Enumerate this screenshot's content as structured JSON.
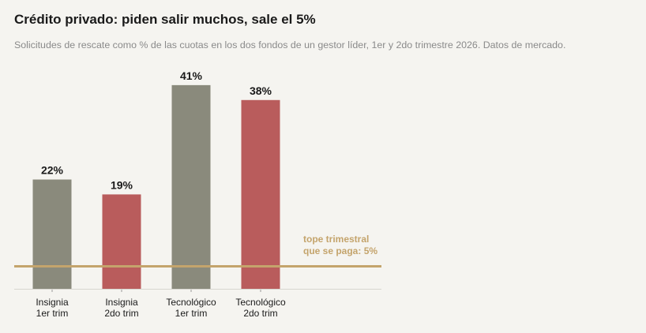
{
  "header": {
    "title": "Crédito privado: piden salir muchos, sale el 5%",
    "subtitle": "Solicitudes de rescate como % de las cuotas en los dos fondos de un gestor líder, 1er y 2do trimestre 2026. Datos de mercado."
  },
  "chart_data": {
    "type": "bar",
    "categories": [
      [
        "Insignia",
        "1er trim"
      ],
      [
        "Insignia",
        "2do trim"
      ],
      [
        "Tecnológico",
        "1er trim"
      ],
      [
        "Tecnológico",
        "2do trim"
      ]
    ],
    "values": [
      22,
      19,
      41,
      38
    ],
    "data_labels": [
      "22%",
      "19%",
      "41%",
      "38%"
    ],
    "bar_colors": [
      "#8a8a7c",
      "#b95c5c",
      "#8a8a7c",
      "#b95c5c"
    ],
    "ylim": [
      0,
      44
    ],
    "reference_line": {
      "value": 5,
      "label": [
        "tope trimestral",
        "que se paga: 5%"
      ],
      "color": "#c4a46c"
    },
    "xlabel": "",
    "ylabel": "",
    "grid": false,
    "legend": "none"
  }
}
